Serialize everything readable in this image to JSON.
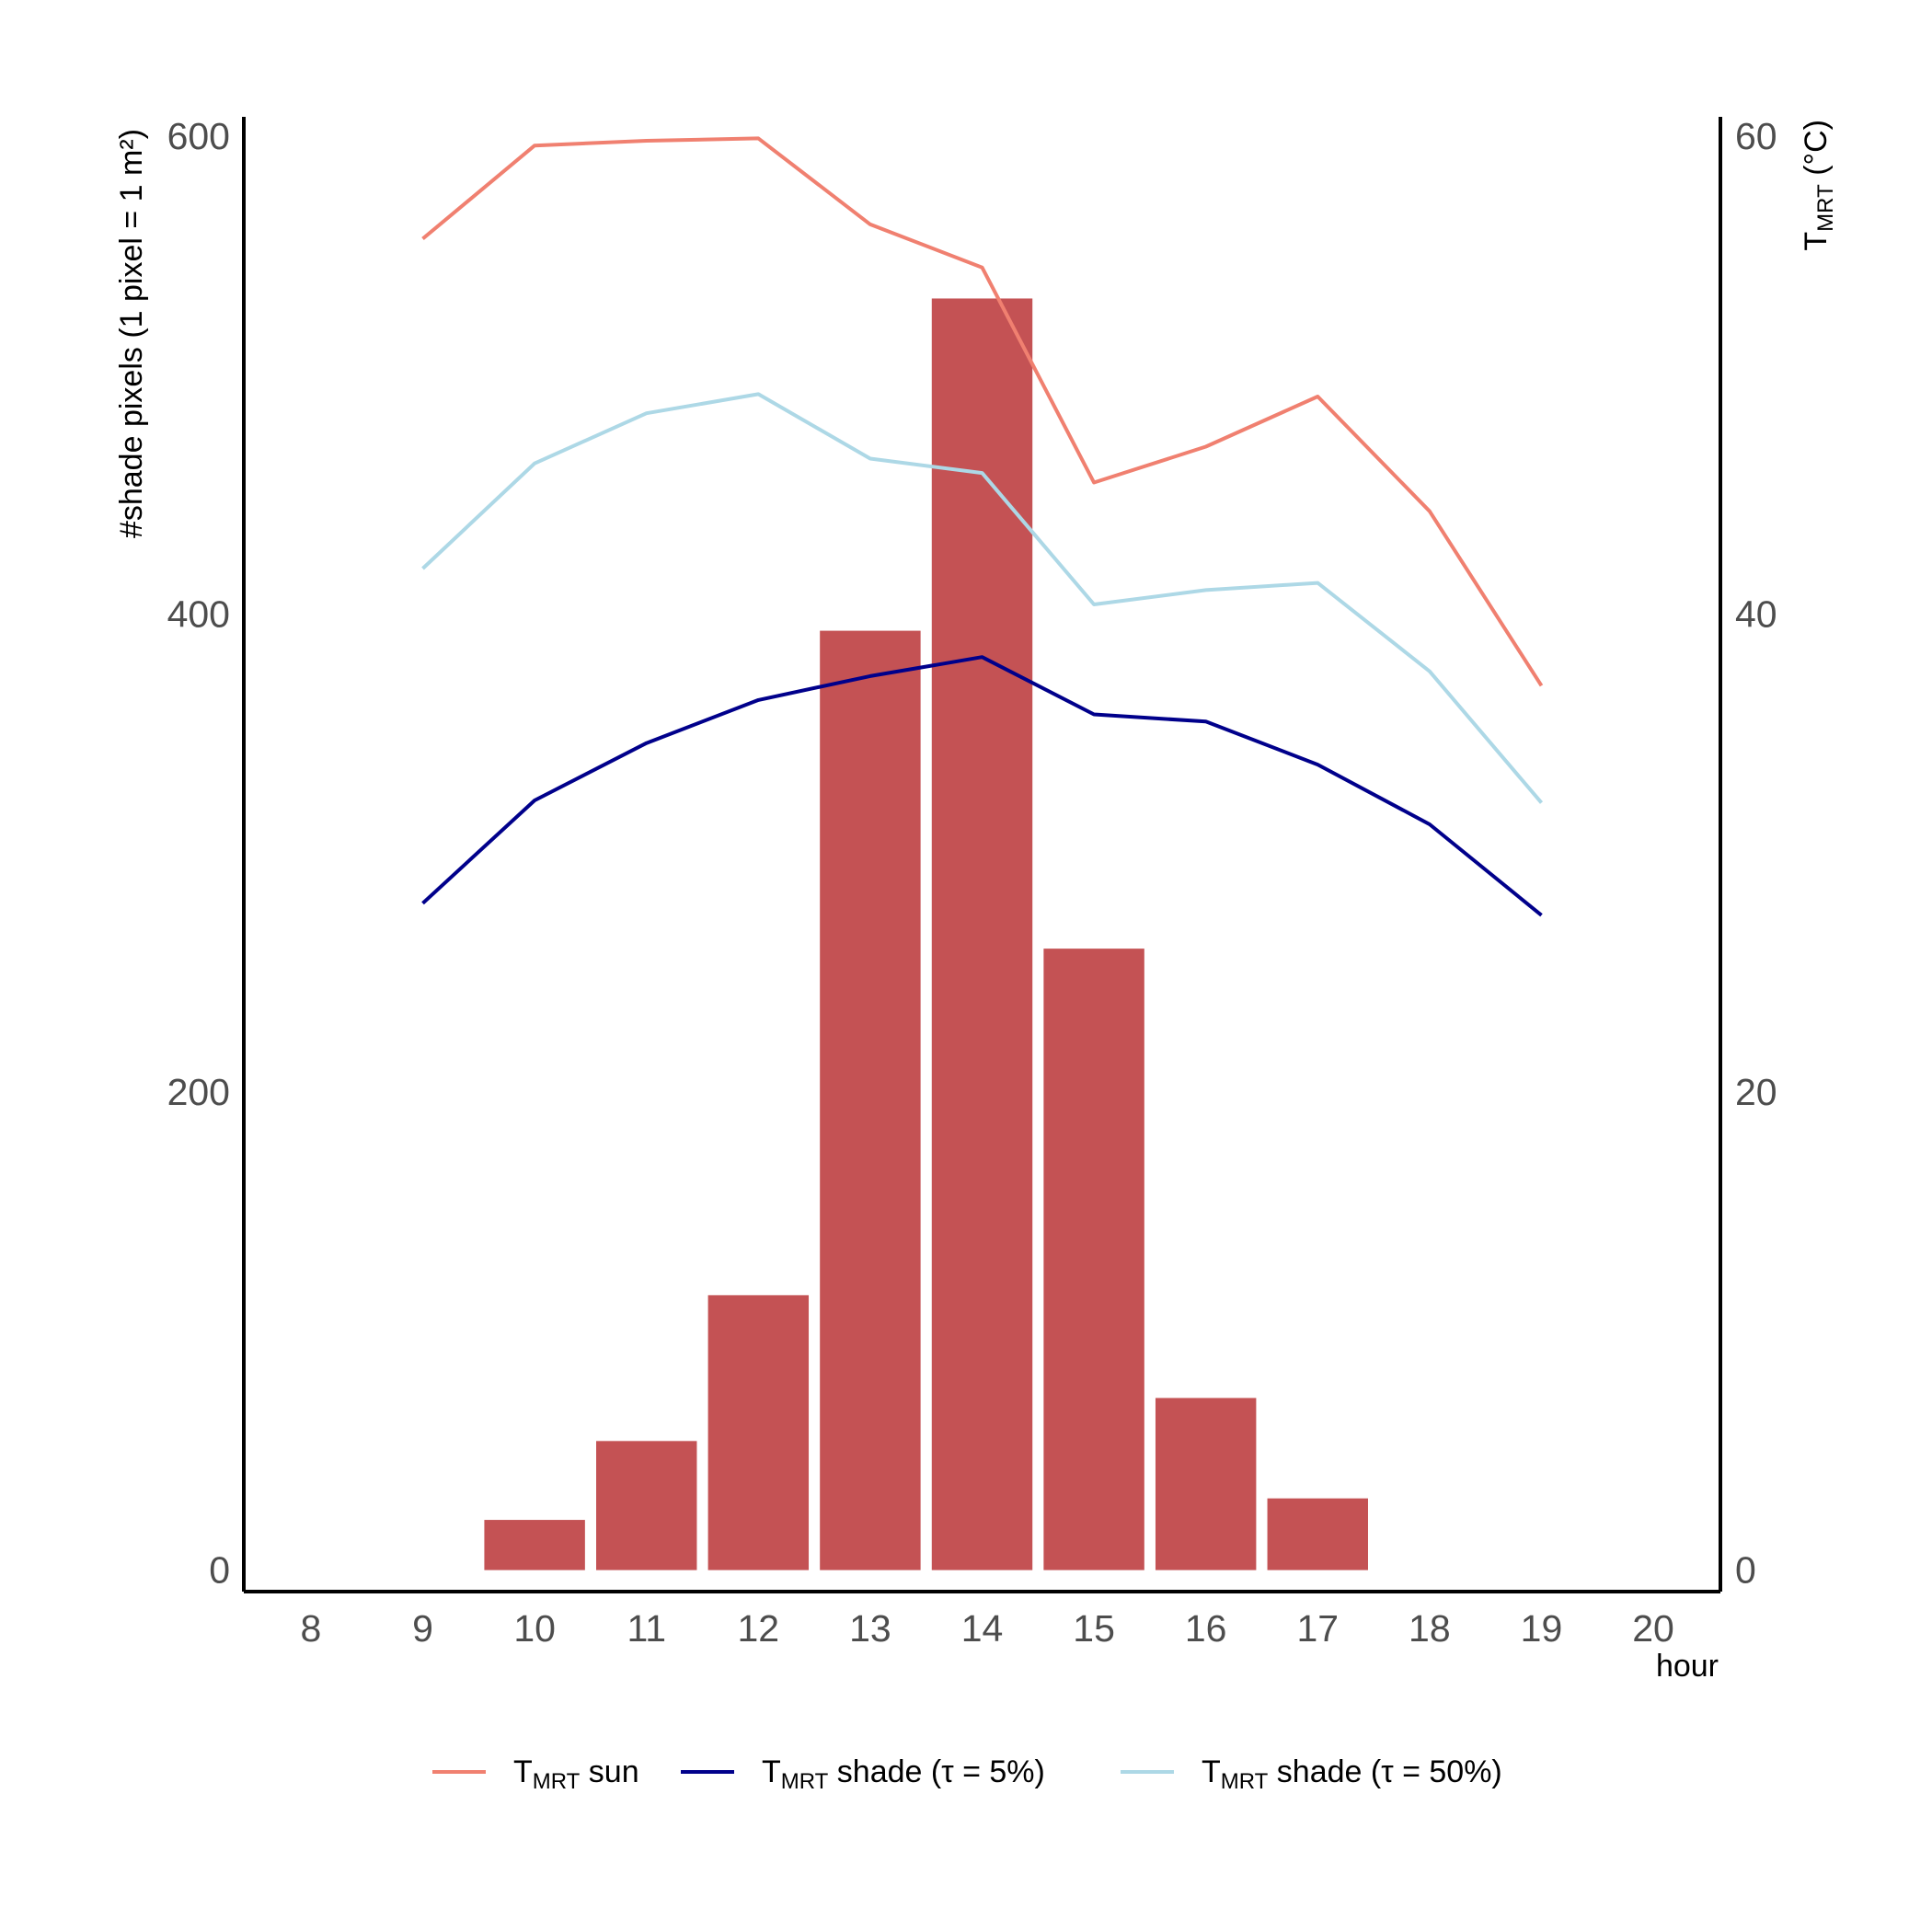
{
  "chart_data": {
    "type": "bar",
    "x": [
      8,
      9,
      10,
      11,
      12,
      13,
      14,
      15,
      16,
      17,
      18,
      19,
      20
    ],
    "x_ticks": [
      "8",
      "9",
      "10",
      "11",
      "12",
      "13",
      "14",
      "15",
      "16",
      "17",
      "18",
      "19",
      "20"
    ],
    "xlabel": "hour",
    "xlim": [
      7.4,
      20.6
    ],
    "bars": {
      "color": "#C45254",
      "x": [
        10,
        11,
        12,
        13,
        14,
        15,
        16,
        17
      ],
      "values": [
        21,
        54,
        115,
        393,
        532,
        260,
        72,
        30
      ]
    },
    "y_left": {
      "label": "#shade pixels (1 pixel = 1 m²)",
      "ticks": [
        0,
        200,
        400,
        600
      ],
      "range": [
        -9,
        608
      ]
    },
    "y_right": {
      "label_main": "T",
      "label_sub": "MRT",
      "label_rest": " (°C)",
      "ticks": [
        0,
        20,
        40,
        60
      ],
      "range": [
        -0.9,
        60.8
      ]
    },
    "series": [
      {
        "name_main": "T",
        "name_sub": "MRT",
        "name_rest": " sun",
        "color": "#F08070",
        "x": [
          9,
          10,
          11,
          12,
          13,
          14,
          15,
          16,
          17,
          18,
          19
        ],
        "values": [
          55.7,
          59.6,
          59.8,
          59.9,
          56.3,
          54.5,
          45.5,
          47.0,
          49.1,
          44.3,
          37.0
        ]
      },
      {
        "name_main": "T",
        "name_sub": "MRT",
        "name_rest": " shade (τ = 5%)",
        "color": "#00008B",
        "x": [
          9,
          10,
          11,
          12,
          13,
          14,
          15,
          16,
          17,
          18,
          19
        ],
        "values": [
          27.9,
          32.2,
          34.6,
          36.4,
          37.4,
          38.2,
          35.8,
          35.5,
          33.7,
          31.2,
          27.4
        ]
      },
      {
        "name_main": "T",
        "name_sub": "MRT",
        "name_rest": " shade (τ = 50%)",
        "color": "#ADD8E6",
        "x": [
          9,
          10,
          11,
          12,
          13,
          14,
          15,
          16,
          17,
          18,
          19
        ],
        "values": [
          41.9,
          46.3,
          48.4,
          49.2,
          46.5,
          45.9,
          40.4,
          41.0,
          41.3,
          37.6,
          32.1
        ]
      }
    ],
    "legend": "bottom",
    "grid": false
  }
}
